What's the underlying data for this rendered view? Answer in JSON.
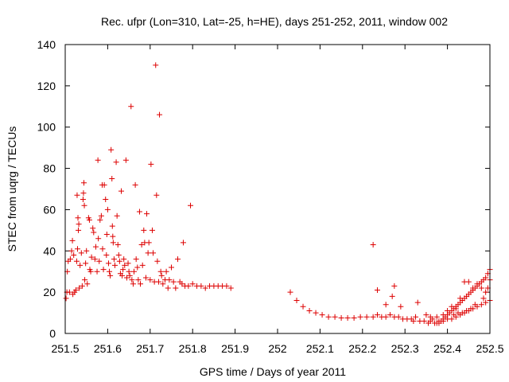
{
  "chart_data": {
    "type": "scatter",
    "title": "Rec. ufpr (Lon=310, Lat=-25, h=HE), days 251-252, 2011, window 002",
    "xlabel": "GPS time / Days of year 2011",
    "ylabel": "STEC from uqrg / TECUs",
    "xlim": [
      251.5,
      252.5
    ],
    "ylim": [
      0,
      140
    ],
    "xticks": [
      251.5,
      251.6,
      251.7,
      251.8,
      251.9,
      252,
      252.1,
      252.2,
      252.3,
      252.4,
      252.5
    ],
    "xtick_labels": [
      "251.5",
      "251.6",
      "251.7",
      "251.8",
      "251.9",
      "252",
      "252.1",
      "252.2",
      "252.3",
      "252.4",
      "252.5"
    ],
    "yticks": [
      0,
      20,
      40,
      60,
      80,
      100,
      120,
      140
    ],
    "ytick_labels": [
      "0",
      "20",
      "40",
      "60",
      "80",
      "100",
      "120",
      "140"
    ],
    "grid": false,
    "marker": "+",
    "color": "#dd0000",
    "series": [
      {
        "name": "STEC",
        "points": [
          [
            251.502,
            17
          ],
          [
            251.504,
            20
          ],
          [
            251.505,
            30
          ],
          [
            251.507,
            35
          ],
          [
            251.51,
            20
          ],
          [
            251.512,
            36
          ],
          [
            251.515,
            40
          ],
          [
            251.517,
            45
          ],
          [
            251.518,
            19
          ],
          [
            251.52,
            38
          ],
          [
            251.522,
            20
          ],
          [
            251.525,
            21
          ],
          [
            251.527,
            35
          ],
          [
            251.528,
            67
          ],
          [
            251.529,
            41
          ],
          [
            251.53,
            56
          ],
          [
            251.531,
            50
          ],
          [
            251.532,
            53
          ],
          [
            251.533,
            22
          ],
          [
            251.535,
            33
          ],
          [
            251.538,
            39
          ],
          [
            251.54,
            23
          ],
          [
            251.542,
            65
          ],
          [
            251.543,
            68
          ],
          [
            251.544,
            73
          ],
          [
            251.545,
            62
          ],
          [
            251.546,
            26
          ],
          [
            251.548,
            34
          ],
          [
            251.55,
            40
          ],
          [
            251.552,
            24
          ],
          [
            251.555,
            56
          ],
          [
            251.557,
            55
          ],
          [
            251.558,
            31
          ],
          [
            251.56,
            30
          ],
          [
            251.562,
            37
          ],
          [
            251.565,
            51
          ],
          [
            251.567,
            49
          ],
          [
            251.57,
            36
          ],
          [
            251.572,
            42
          ],
          [
            251.575,
            30
          ],
          [
            251.577,
            84
          ],
          [
            251.578,
            46
          ],
          [
            251.58,
            35
          ],
          [
            251.582,
            55
          ],
          [
            251.585,
            57
          ],
          [
            251.587,
            72
          ],
          [
            251.588,
            41
          ],
          [
            251.59,
            31
          ],
          [
            251.592,
            72
          ],
          [
            251.595,
            65
          ],
          [
            251.597,
            38
          ],
          [
            251.598,
            48
          ],
          [
            251.6,
            60
          ],
          [
            251.602,
            34
          ],
          [
            251.604,
            30
          ],
          [
            251.606,
            28
          ],
          [
            251.608,
            89
          ],
          [
            251.61,
            75
          ],
          [
            251.611,
            52
          ],
          [
            251.612,
            47
          ],
          [
            251.613,
            44
          ],
          [
            251.615,
            36
          ],
          [
            251.617,
            33
          ],
          [
            251.62,
            83
          ],
          [
            251.622,
            57
          ],
          [
            251.624,
            43
          ],
          [
            251.626,
            38
          ],
          [
            251.628,
            35
          ],
          [
            251.63,
            29
          ],
          [
            251.632,
            69
          ],
          [
            251.634,
            28
          ],
          [
            251.636,
            31
          ],
          [
            251.638,
            36
          ],
          [
            251.64,
            33
          ],
          [
            251.643,
            84
          ],
          [
            251.645,
            27
          ],
          [
            251.648,
            34
          ],
          [
            251.65,
            30
          ],
          [
            251.652,
            28
          ],
          [
            251.655,
            110
          ],
          [
            251.657,
            26
          ],
          [
            251.66,
            24
          ],
          [
            251.662,
            30
          ],
          [
            251.665,
            72
          ],
          [
            251.667,
            36
          ],
          [
            251.67,
            32
          ],
          [
            251.672,
            26
          ],
          [
            251.675,
            59
          ],
          [
            251.677,
            24
          ],
          [
            251.68,
            43
          ],
          [
            251.682,
            33
          ],
          [
            251.685,
            50
          ],
          [
            251.687,
            44
          ],
          [
            251.69,
            27
          ],
          [
            251.692,
            58
          ],
          [
            251.695,
            39
          ],
          [
            251.697,
            44
          ],
          [
            251.7,
            26
          ],
          [
            251.702,
            82
          ],
          [
            251.705,
            50
          ],
          [
            251.707,
            39
          ],
          [
            251.71,
            25
          ],
          [
            251.713,
            130
          ],
          [
            251.715,
            67
          ],
          [
            251.717,
            35
          ],
          [
            251.72,
            25
          ],
          [
            251.722,
            106
          ],
          [
            251.725,
            30
          ],
          [
            251.727,
            28
          ],
          [
            251.73,
            24
          ],
          [
            251.735,
            26
          ],
          [
            251.738,
            30
          ],
          [
            251.742,
            22
          ],
          [
            251.745,
            26
          ],
          [
            251.75,
            32
          ],
          [
            251.755,
            25
          ],
          [
            251.76,
            22
          ],
          [
            251.765,
            36
          ],
          [
            251.77,
            25
          ],
          [
            251.775,
            24
          ],
          [
            251.778,
            44
          ],
          [
            251.782,
            23
          ],
          [
            251.79,
            23
          ],
          [
            251.795,
            62
          ],
          [
            251.8,
            24
          ],
          [
            251.81,
            23
          ],
          [
            251.82,
            23
          ],
          [
            251.83,
            22
          ],
          [
            251.84,
            23
          ],
          [
            251.85,
            23
          ],
          [
            251.86,
            23
          ],
          [
            251.87,
            23
          ],
          [
            251.88,
            23
          ],
          [
            251.89,
            22
          ],
          [
            252.03,
            20
          ],
          [
            252.045,
            16
          ],
          [
            252.06,
            13
          ],
          [
            252.075,
            11
          ],
          [
            252.09,
            10
          ],
          [
            252.105,
            9
          ],
          [
            252.12,
            8
          ],
          [
            252.135,
            8
          ],
          [
            252.15,
            7.5
          ],
          [
            252.165,
            7.5
          ],
          [
            252.18,
            7.5
          ],
          [
            252.195,
            8
          ],
          [
            252.21,
            8
          ],
          [
            252.225,
            8
          ],
          [
            252.235,
            9
          ],
          [
            252.245,
            8
          ],
          [
            252.255,
            8
          ],
          [
            252.265,
            9
          ],
          [
            252.275,
            8
          ],
          [
            252.285,
            8
          ],
          [
            252.295,
            7
          ],
          [
            252.305,
            7
          ],
          [
            252.315,
            7
          ],
          [
            252.32,
            6
          ],
          [
            252.325,
            8
          ],
          [
            252.335,
            6
          ],
          [
            252.345,
            6
          ],
          [
            252.355,
            5
          ],
          [
            252.36,
            6
          ],
          [
            252.365,
            7
          ],
          [
            252.37,
            5
          ],
          [
            252.375,
            5
          ],
          [
            252.38,
            6
          ],
          [
            252.385,
            6
          ],
          [
            252.39,
            7
          ],
          [
            252.395,
            8
          ],
          [
            252.4,
            9
          ],
          [
            252.405,
            10
          ],
          [
            252.41,
            11
          ],
          [
            252.415,
            12
          ],
          [
            252.42,
            13
          ],
          [
            252.425,
            14
          ],
          [
            252.43,
            15
          ],
          [
            252.435,
            16
          ],
          [
            252.44,
            17
          ],
          [
            252.445,
            18
          ],
          [
            252.45,
            19
          ],
          [
            252.455,
            20
          ],
          [
            252.46,
            21
          ],
          [
            252.465,
            22
          ],
          [
            252.47,
            23
          ],
          [
            252.475,
            24
          ],
          [
            252.48,
            25
          ],
          [
            252.485,
            26
          ],
          [
            252.49,
            27
          ],
          [
            252.495,
            29
          ],
          [
            252.5,
            31
          ],
          [
            252.5,
            16
          ],
          [
            252.49,
            15
          ],
          [
            252.48,
            14
          ],
          [
            252.47,
            13
          ],
          [
            252.46,
            12
          ],
          [
            252.45,
            11
          ],
          [
            252.44,
            10
          ],
          [
            252.43,
            9
          ],
          [
            252.42,
            8
          ],
          [
            252.41,
            7
          ],
          [
            252.4,
            7
          ],
          [
            252.39,
            6
          ],
          [
            252.38,
            5
          ],
          [
            252.225,
            43
          ],
          [
            252.235,
            21
          ],
          [
            252.255,
            14
          ],
          [
            252.27,
            18
          ],
          [
            252.275,
            23
          ],
          [
            252.29,
            13
          ],
          [
            252.33,
            15
          ],
          [
            252.35,
            9
          ],
          [
            252.36,
            8
          ],
          [
            252.375,
            8
          ],
          [
            252.39,
            9
          ],
          [
            252.4,
            11
          ],
          [
            252.41,
            13
          ],
          [
            252.42,
            12
          ],
          [
            252.43,
            17
          ],
          [
            252.44,
            25
          ],
          [
            252.45,
            25
          ],
          [
            252.46,
            22
          ],
          [
            252.47,
            24
          ],
          [
            252.48,
            22
          ],
          [
            252.49,
            20
          ],
          [
            252.5,
            26
          ],
          [
            252.495,
            22
          ],
          [
            252.485,
            17
          ],
          [
            252.465,
            14
          ],
          [
            252.455,
            12
          ],
          [
            252.445,
            11
          ],
          [
            252.435,
            10
          ],
          [
            252.425,
            10
          ],
          [
            252.415,
            9
          ]
        ]
      }
    ]
  }
}
